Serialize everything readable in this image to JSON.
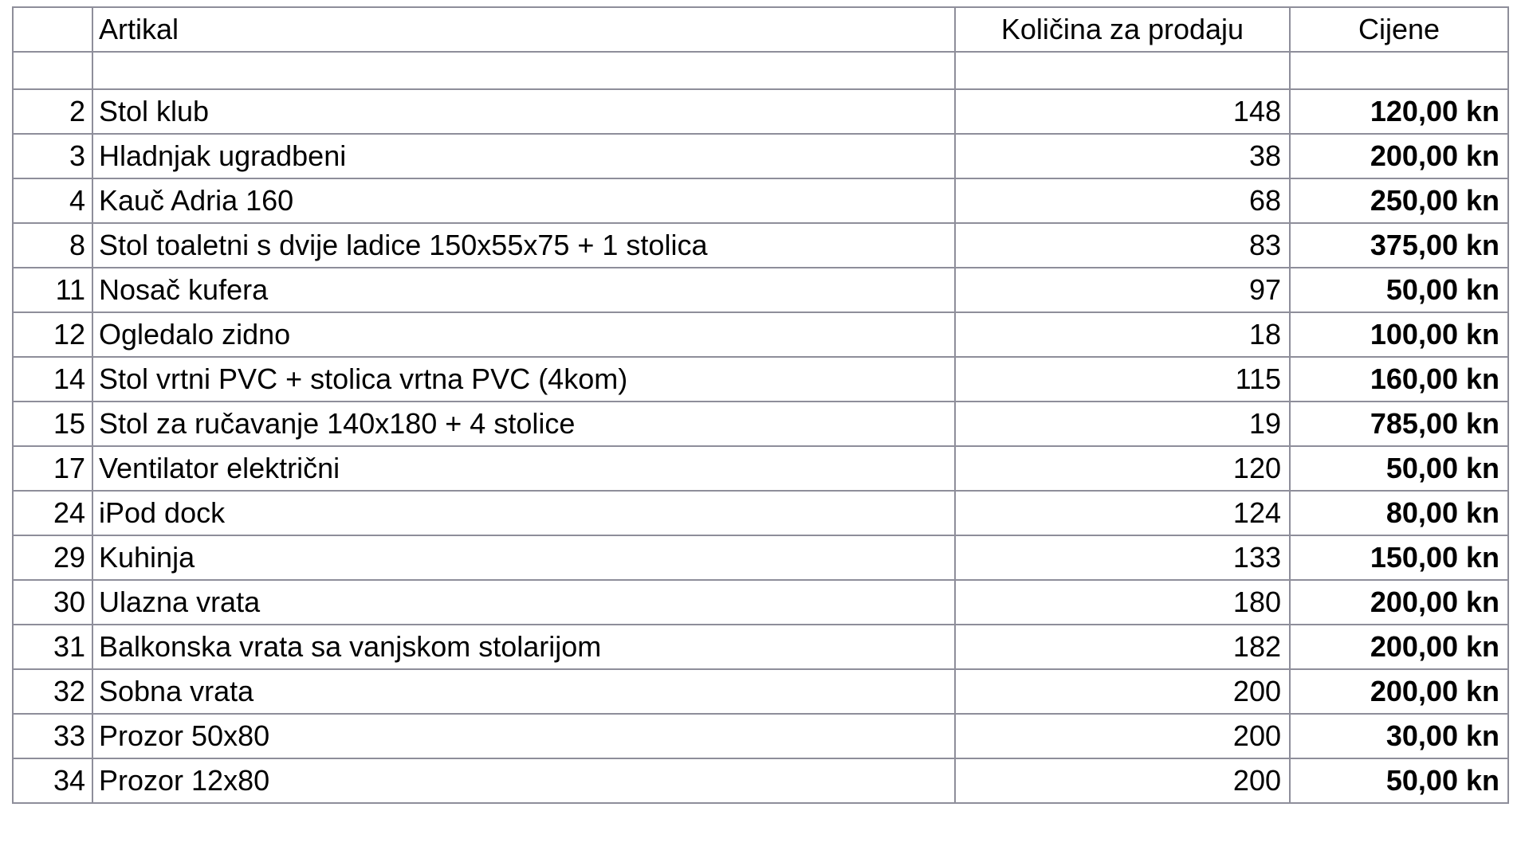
{
  "table": {
    "headers": [
      "",
      "Artikal",
      "Količina za prodaju",
      "Cijene"
    ],
    "rows": [
      {
        "id": "2",
        "name": "Stol klub",
        "qty": "148",
        "price": "120,00 kn"
      },
      {
        "id": "3",
        "name": "Hladnjak ugradbeni",
        "qty": "38",
        "price": "200,00 kn"
      },
      {
        "id": "4",
        "name": "Kauč Adria 160",
        "qty": "68",
        "price": "250,00 kn"
      },
      {
        "id": "8",
        "name": "Stol toaletni s dvije ladice 150x55x75 + 1 stolica",
        "qty": "83",
        "price": "375,00 kn"
      },
      {
        "id": "11",
        "name": "Nosač kufera",
        "qty": "97",
        "price": "50,00 kn"
      },
      {
        "id": "12",
        "name": "Ogledalo zidno",
        "qty": "18",
        "price": "100,00 kn"
      },
      {
        "id": "14",
        "name": "Stol vrtni PVC + stolica vrtna PVC (4kom)",
        "qty": "115",
        "price": "160,00 kn"
      },
      {
        "id": "15",
        "name": "Stol za ručavanje 140x180 + 4 stolice",
        "qty": "19",
        "price": "785,00 kn"
      },
      {
        "id": "17",
        "name": "Ventilator električni",
        "qty": "120",
        "price": "50,00 kn"
      },
      {
        "id": "24",
        "name": "iPod dock",
        "qty": "124",
        "price": "80,00 kn"
      },
      {
        "id": "29",
        "name": "Kuhinja",
        "qty": "133",
        "price": "150,00 kn"
      },
      {
        "id": "30",
        "name": "Ulazna vrata",
        "qty": "180",
        "price": "200,00 kn"
      },
      {
        "id": "31",
        "name": "Balkonska vrata sa vanjskom stolarijom",
        "qty": "182",
        "price": "200,00 kn"
      },
      {
        "id": "32",
        "name": "Sobna vrata",
        "qty": "200",
        "price": "200,00 kn"
      },
      {
        "id": "33",
        "name": "Prozor 50x80",
        "qty": "200",
        "price": "30,00 kn"
      },
      {
        "id": "34",
        "name": "Prozor 12x80",
        "qty": "200",
        "price": "50,00 kn"
      }
    ]
  },
  "colors": {
    "grid": "#8e8e9a"
  }
}
